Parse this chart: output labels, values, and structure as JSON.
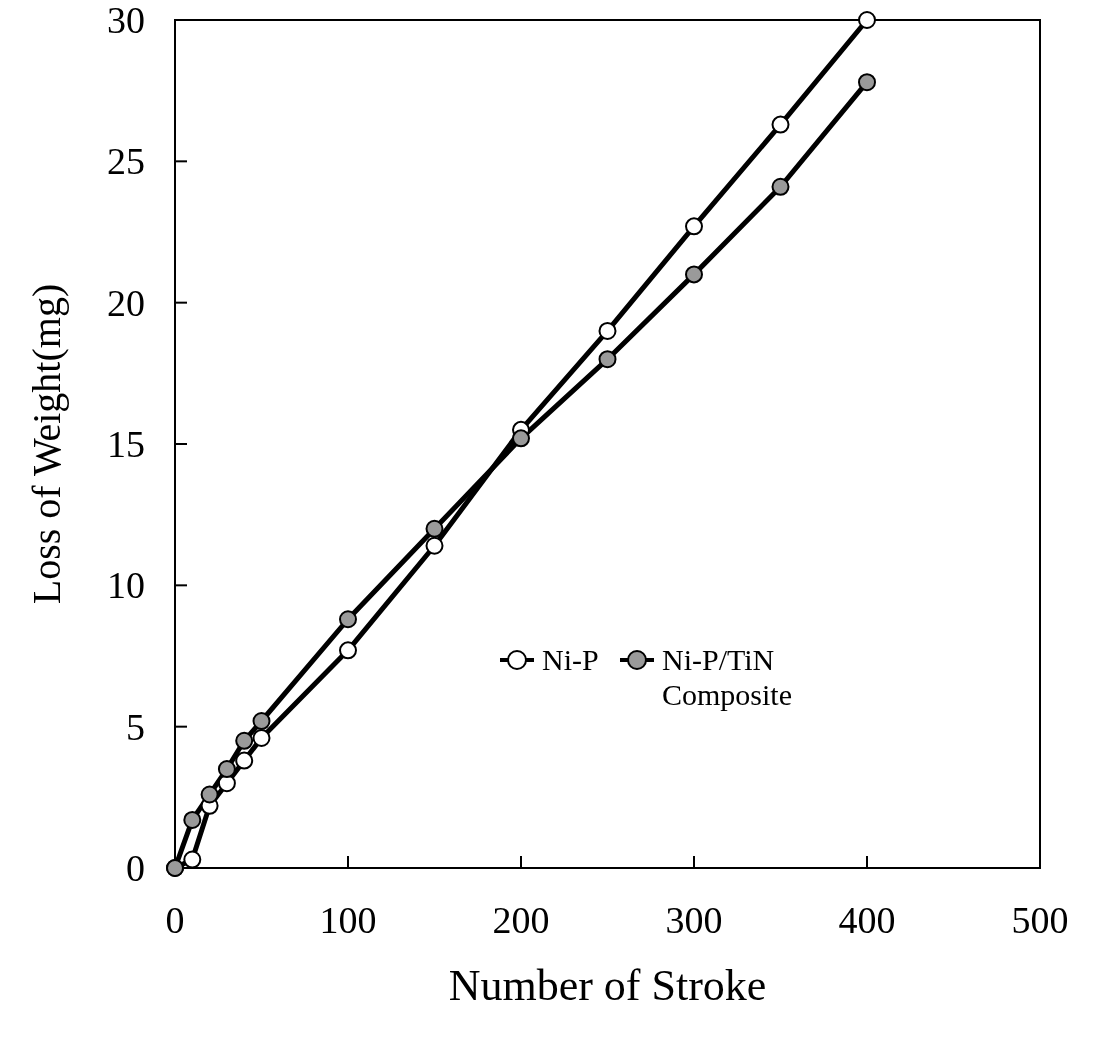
{
  "chart_data": {
    "type": "line",
    "xlabel": "Number of Stroke",
    "ylabel": "Loss of Weight(mg)",
    "xlim": [
      0,
      500
    ],
    "xticks": [
      0,
      100,
      200,
      300,
      400,
      500
    ],
    "ylim": [
      0,
      30
    ],
    "yticks": [
      0,
      5,
      10,
      15,
      20,
      25,
      30
    ],
    "grid": false,
    "legend": "right",
    "marker": "circle",
    "line_style": "solid",
    "series": [
      {
        "name": "Ni-P",
        "color": "#000000",
        "x": [
          0,
          10,
          20,
          30,
          40,
          50,
          100,
          150,
          200,
          250,
          300,
          350,
          400
        ],
        "values": [
          0,
          0.3,
          2.2,
          3,
          3.8,
          4.6,
          7.7,
          11.4,
          15.5,
          19,
          22.7,
          26.3,
          30
        ]
      },
      {
        "name": "Ni-P/TiN Composite",
        "color": "#000000",
        "x": [
          0,
          10,
          20,
          30,
          40,
          50,
          100,
          150,
          200,
          250,
          300,
          350,
          400
        ],
        "values": [
          0,
          1.7,
          2.6,
          3.5,
          4.5,
          5.2,
          8.8,
          12,
          15.2,
          18,
          21,
          24.1,
          27.8
        ]
      }
    ]
  }
}
